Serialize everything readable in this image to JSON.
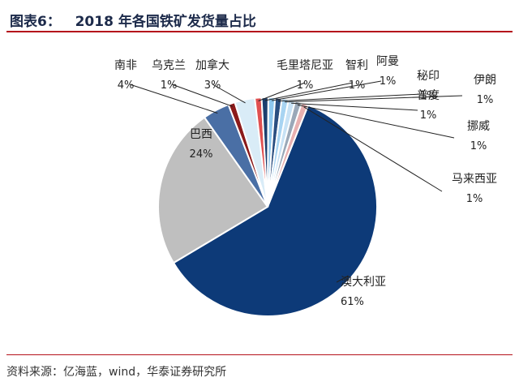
{
  "header": {
    "title": "图表6：   2018 年各国铁矿发货量占比"
  },
  "footer": {
    "source": "资料来源：亿海蓝，wind，华泰证券研究所"
  },
  "chart_data": {
    "type": "pie",
    "title": "2018 年各国铁矿发货量占比",
    "slices": [
      {
        "label": "澳大利亚",
        "value_text": "61%",
        "value": 61,
        "color": "#0d3a78"
      },
      {
        "label": "巴西",
        "value_text": "24%",
        "value": 24,
        "color": "#bfbfbf"
      },
      {
        "label": "南非",
        "value_text": "4%",
        "value": 4,
        "color": "#4a6fa5"
      },
      {
        "label": "乌克兰",
        "value_text": "1%",
        "value": 1,
        "color": "#8b1a1a"
      },
      {
        "label": "加拿大",
        "value_text": "3%",
        "value": 3,
        "color": "#d9ecf7"
      },
      {
        "label": "毛里塔尼亚",
        "value_text": "1%",
        "value": 1,
        "color": "#e05050"
      },
      {
        "label": "智利",
        "value_text": "1%",
        "value": 1,
        "color": "#1c3f6e"
      },
      {
        "label": "阿曼",
        "value_text": "1%",
        "value": 1,
        "color": "#8fc8ee"
      },
      {
        "label": "秘印",
        "value_text": "1%",
        "value": 1,
        "color": "#2a4e80"
      },
      {
        "label": "伊朗",
        "value_text": "1%",
        "value": 1,
        "color": "#a8d4f2"
      },
      {
        "label": "普度",
        "value_text": "1%",
        "value": 1,
        "color": "#c8e2f5"
      },
      {
        "label": "挪威",
        "value_text": "1%",
        "value": 1,
        "color": "#9aa8b8"
      },
      {
        "label": "马来西亚",
        "value_text": "1%",
        "value": 1,
        "color": "#e8b0b0"
      }
    ]
  }
}
